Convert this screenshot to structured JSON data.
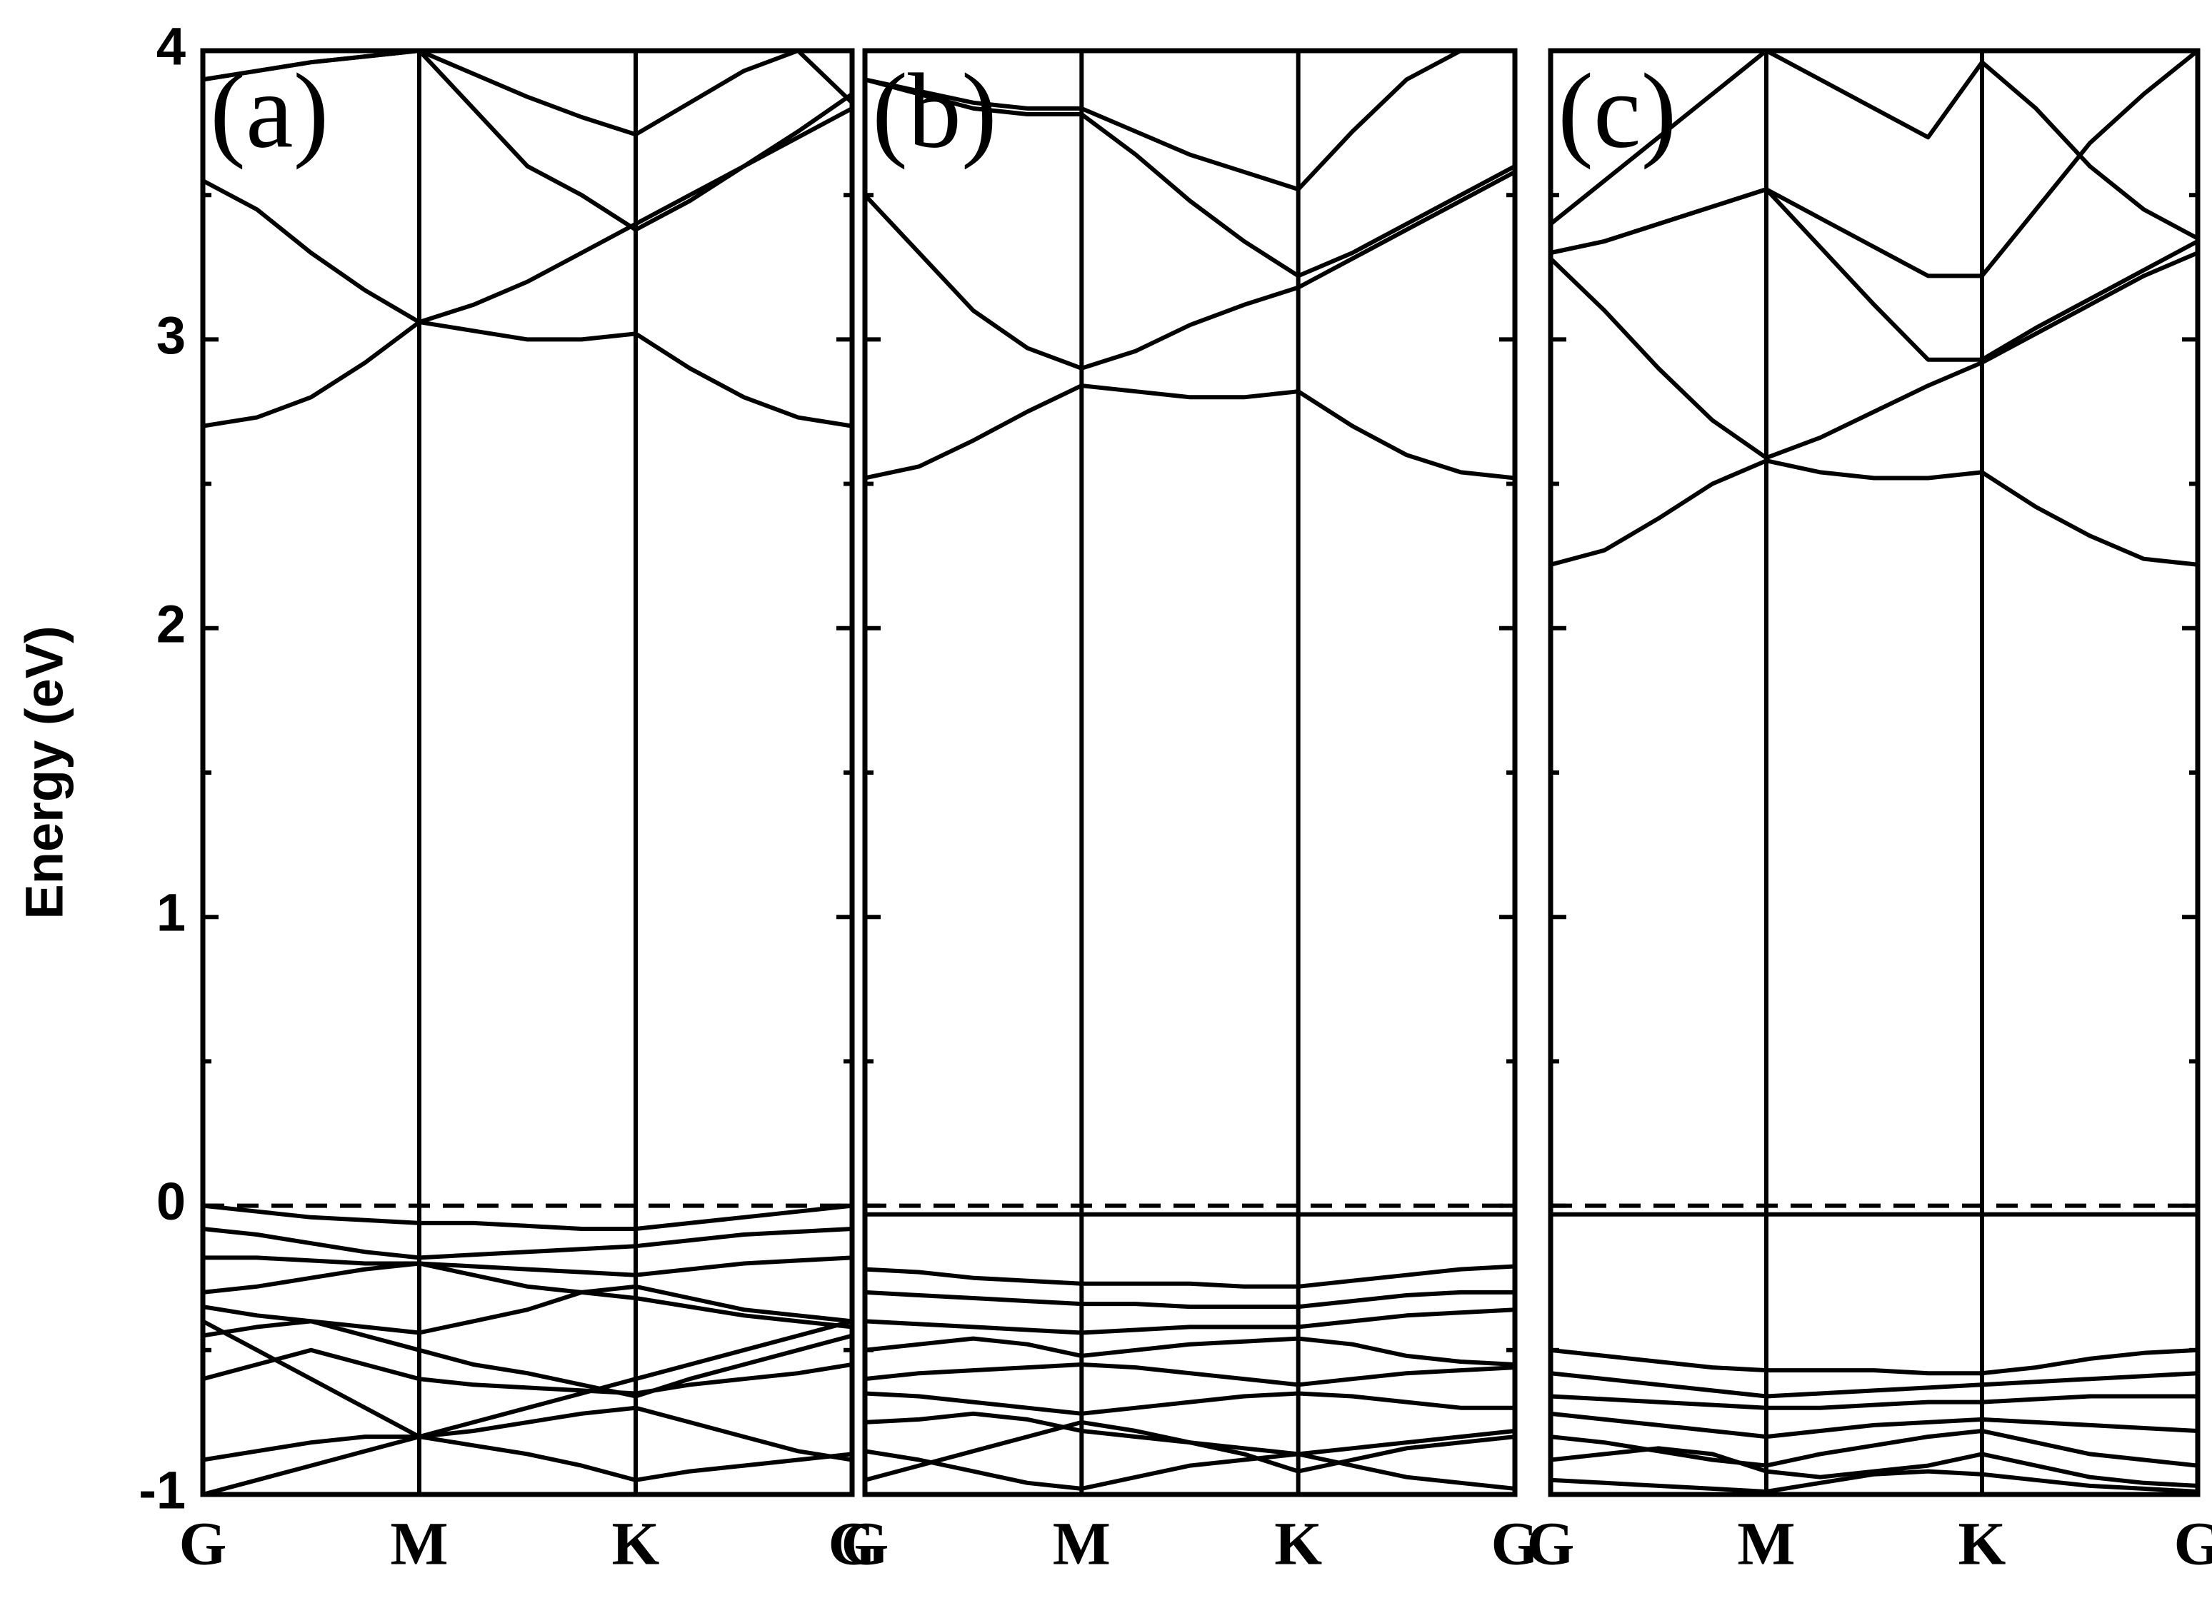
{
  "chart_data": [
    {
      "type": "line",
      "label": "(a)",
      "ylabel": "Energy (eV)",
      "x": [
        0,
        0.25,
        0.5,
        0.75,
        1,
        1.25,
        1.5,
        1.75,
        2,
        2.25,
        2.5,
        2.75,
        3
      ],
      "xlim": [
        0,
        3
      ],
      "xticks": [
        {
          "value": 0,
          "label": "G"
        },
        {
          "value": 1,
          "label": "M"
        },
        {
          "value": 2,
          "label": "K"
        },
        {
          "value": 3,
          "label": "G"
        }
      ],
      "ylim": [
        -1,
        4
      ],
      "yticks": [
        -1,
        0,
        1,
        2,
        3,
        4
      ],
      "minor_yticks": [
        -0.5,
        0.5,
        1.5,
        2.5,
        3.5
      ],
      "hline": 0,
      "hline_style": "dashed",
      "series": [
        {
          "color": "#000000",
          "values": [
            2.7,
            2.73,
            2.8,
            2.92,
            3.06,
            3.03,
            3.0,
            3.0,
            3.02,
            2.9,
            2.8,
            2.73,
            2.7
          ]
        },
        {
          "color": "#000000",
          "values": [
            3.55,
            3.45,
            3.3,
            3.17,
            3.06,
            3.12,
            3.2,
            3.3,
            3.4,
            3.5,
            3.6,
            3.7,
            3.8
          ]
        },
        {
          "color": "#000000",
          "values": [
            3.9,
            3.93,
            3.96,
            3.98,
            4.0,
            3.8,
            3.6,
            3.5,
            3.38,
            3.48,
            3.6,
            3.72,
            3.85
          ]
        },
        {
          "color": "#000000",
          "values": [
            3.9,
            3.93,
            3.96,
            3.98,
            4.0,
            3.92,
            3.84,
            3.77,
            3.71,
            3.82,
            3.93,
            4.0,
            3.82
          ]
        },
        {
          "color": "#000000",
          "values": [
            0,
            -0.02,
            -0.04,
            -0.05,
            -0.06,
            -0.06,
            -0.07,
            -0.08,
            -0.08,
            -0.06,
            -0.04,
            -0.02,
            0
          ]
        },
        {
          "color": "#000000",
          "values": [
            -0.08,
            -0.1,
            -0.13,
            -0.16,
            -0.18,
            -0.17,
            -0.16,
            -0.15,
            -0.14,
            -0.12,
            -0.1,
            -0.09,
            -0.08
          ]
        },
        {
          "color": "#000000",
          "values": [
            -0.18,
            -0.18,
            -0.19,
            -0.2,
            -0.2,
            -0.21,
            -0.22,
            -0.23,
            -0.24,
            -0.22,
            -0.2,
            -0.19,
            -0.18
          ]
        },
        {
          "color": "#000000",
          "values": [
            -0.3,
            -0.28,
            -0.25,
            -0.22,
            -0.2,
            -0.24,
            -0.28,
            -0.3,
            -0.32,
            -0.35,
            -0.38,
            -0.4,
            -0.42
          ]
        },
        {
          "color": "#000000",
          "values": [
            -0.35,
            -0.38,
            -0.4,
            -0.42,
            -0.44,
            -0.4,
            -0.36,
            -0.3,
            -0.28,
            -0.32,
            -0.36,
            -0.38,
            -0.4
          ]
        },
        {
          "color": "#000000",
          "values": [
            -0.45,
            -0.42,
            -0.4,
            -0.45,
            -0.5,
            -0.55,
            -0.58,
            -0.62,
            -0.66,
            -0.6,
            -0.55,
            -0.5,
            -0.45
          ]
        },
        {
          "color": "#000000",
          "values": [
            -0.6,
            -0.55,
            -0.5,
            -0.55,
            -0.6,
            -0.62,
            -0.63,
            -0.64,
            -0.65,
            -0.62,
            -0.6,
            -0.58,
            -0.55
          ]
        },
        {
          "color": "#000000",
          "values": [
            -0.88,
            -0.85,
            -0.82,
            -0.8,
            -0.8,
            -0.78,
            -0.75,
            -0.72,
            -0.7,
            -0.75,
            -0.8,
            -0.85,
            -0.88
          ]
        },
        {
          "color": "#000000",
          "values": [
            -1.0,
            -0.95,
            -0.9,
            -0.85,
            -0.8,
            -0.83,
            -0.86,
            -0.9,
            -0.95,
            -0.92,
            -0.9,
            -0.88,
            -0.86
          ]
        },
        {
          "color": "#000000",
          "values": [
            -0.4,
            -0.5,
            -0.6,
            -0.7,
            -0.8,
            -0.75,
            -0.7,
            -0.65,
            -0.6,
            -0.55,
            -0.5,
            -0.45,
            -0.4
          ]
        }
      ]
    },
    {
      "type": "line",
      "label": "(b)",
      "x": [
        0,
        0.25,
        0.5,
        0.75,
        1,
        1.25,
        1.5,
        1.75,
        2,
        2.25,
        2.5,
        2.75,
        3
      ],
      "xlim": [
        0,
        3
      ],
      "xticks": [
        {
          "value": 0,
          "label": "G"
        },
        {
          "value": 1,
          "label": "M"
        },
        {
          "value": 2,
          "label": "K"
        },
        {
          "value": 3,
          "label": "G"
        }
      ],
      "ylim": [
        -1,
        4
      ],
      "hline": 0,
      "hline_style": "dashed",
      "series": [
        {
          "color": "#000000",
          "values": [
            2.52,
            2.56,
            2.65,
            2.75,
            2.84,
            2.82,
            2.8,
            2.8,
            2.82,
            2.7,
            2.6,
            2.54,
            2.52
          ]
        },
        {
          "color": "#000000",
          "values": [
            3.5,
            3.3,
            3.1,
            2.97,
            2.9,
            2.96,
            3.05,
            3.12,
            3.18,
            3.28,
            3.38,
            3.48,
            3.58
          ]
        },
        {
          "color": "#000000",
          "values": [
            3.9,
            3.85,
            3.8,
            3.78,
            3.78,
            3.64,
            3.48,
            3.34,
            3.22,
            3.3,
            3.4,
            3.5,
            3.6
          ]
        },
        {
          "color": "#000000",
          "values": [
            3.9,
            3.86,
            3.82,
            3.8,
            3.8,
            3.72,
            3.64,
            3.58,
            3.52,
            3.72,
            3.9,
            4.0,
            4.0
          ]
        },
        {
          "color": "#000000",
          "values": [
            -0.03,
            -0.03,
            -0.03,
            -0.03,
            -0.03,
            -0.03,
            -0.03,
            -0.03,
            -0.03,
            -0.03,
            -0.03,
            -0.03,
            -0.03
          ]
        },
        {
          "color": "#000000",
          "values": [
            -0.22,
            -0.23,
            -0.25,
            -0.26,
            -0.27,
            -0.27,
            -0.27,
            -0.28,
            -0.28,
            -0.26,
            -0.24,
            -0.22,
            -0.21
          ]
        },
        {
          "color": "#000000",
          "values": [
            -0.3,
            -0.31,
            -0.32,
            -0.33,
            -0.34,
            -0.34,
            -0.35,
            -0.35,
            -0.35,
            -0.33,
            -0.31,
            -0.3,
            -0.3
          ]
        },
        {
          "color": "#000000",
          "values": [
            -0.4,
            -0.41,
            -0.42,
            -0.43,
            -0.44,
            -0.43,
            -0.42,
            -0.42,
            -0.42,
            -0.4,
            -0.38,
            -0.37,
            -0.36
          ]
        },
        {
          "color": "#000000",
          "values": [
            -0.5,
            -0.48,
            -0.46,
            -0.48,
            -0.52,
            -0.5,
            -0.48,
            -0.47,
            -0.46,
            -0.48,
            -0.52,
            -0.54,
            -0.55
          ]
        },
        {
          "color": "#000000",
          "values": [
            -0.6,
            -0.58,
            -0.57,
            -0.56,
            -0.55,
            -0.56,
            -0.58,
            -0.6,
            -0.62,
            -0.6,
            -0.58,
            -0.57,
            -0.56
          ]
        },
        {
          "color": "#000000",
          "values": [
            -0.65,
            -0.66,
            -0.68,
            -0.7,
            -0.72,
            -0.7,
            -0.68,
            -0.66,
            -0.65,
            -0.66,
            -0.68,
            -0.7,
            -0.7
          ]
        },
        {
          "color": "#000000",
          "values": [
            -0.75,
            -0.74,
            -0.72,
            -0.74,
            -0.78,
            -0.8,
            -0.82,
            -0.84,
            -0.86,
            -0.84,
            -0.82,
            -0.8,
            -0.78
          ]
        },
        {
          "color": "#000000",
          "values": [
            -0.85,
            -0.88,
            -0.92,
            -0.96,
            -0.98,
            -0.94,
            -0.9,
            -0.88,
            -0.86,
            -0.9,
            -0.94,
            -0.96,
            -0.98
          ]
        },
        {
          "color": "#000000",
          "values": [
            -0.95,
            -0.9,
            -0.85,
            -0.8,
            -0.75,
            -0.78,
            -0.82,
            -0.86,
            -0.92,
            -0.88,
            -0.84,
            -0.82,
            -0.8
          ]
        }
      ]
    },
    {
      "type": "line",
      "label": "(c)",
      "x": [
        0,
        0.25,
        0.5,
        0.75,
        1,
        1.25,
        1.5,
        1.75,
        2,
        2.25,
        2.5,
        2.75,
        3
      ],
      "xlim": [
        0,
        3
      ],
      "xticks": [
        {
          "value": 0,
          "label": "G"
        },
        {
          "value": 1,
          "label": "M"
        },
        {
          "value": 2,
          "label": "K"
        },
        {
          "value": 3,
          "label": "G"
        }
      ],
      "ylim": [
        -1,
        4
      ],
      "hline": 0,
      "hline_style": "dashed",
      "series": [
        {
          "color": "#000000",
          "values": [
            2.22,
            2.27,
            2.38,
            2.5,
            2.58,
            2.54,
            2.52,
            2.52,
            2.54,
            2.42,
            2.32,
            2.24,
            2.22
          ]
        },
        {
          "color": "#000000",
          "values": [
            3.28,
            3.1,
            2.9,
            2.72,
            2.59,
            2.66,
            2.75,
            2.84,
            2.92,
            3.02,
            3.12,
            3.22,
            3.3
          ]
        },
        {
          "color": "#000000",
          "values": [
            3.3,
            3.34,
            3.4,
            3.46,
            3.52,
            3.32,
            3.12,
            2.93,
            2.93,
            3.04,
            3.14,
            3.24,
            3.34
          ]
        },
        {
          "color": "#000000",
          "values": [
            3.3,
            3.34,
            3.4,
            3.46,
            3.52,
            3.42,
            3.32,
            3.22,
            3.22,
            3.45,
            3.68,
            3.85,
            4.0
          ]
        },
        {
          "color": "#000000",
          "values": [
            3.4,
            3.55,
            3.7,
            3.85,
            4.0,
            3.9,
            3.8,
            3.7,
            3.96,
            3.8,
            3.6,
            3.45,
            3.35
          ]
        },
        {
          "color": "#000000",
          "values": [
            -0.03,
            -0.03,
            -0.03,
            -0.03,
            -0.03,
            -0.03,
            -0.03,
            -0.03,
            -0.03,
            -0.03,
            -0.03,
            -0.03,
            -0.03
          ]
        },
        {
          "color": "#000000",
          "values": [
            -0.5,
            -0.52,
            -0.54,
            -0.56,
            -0.57,
            -0.57,
            -0.57,
            -0.58,
            -0.58,
            -0.56,
            -0.53,
            -0.51,
            -0.5
          ]
        },
        {
          "color": "#000000",
          "values": [
            -0.58,
            -0.6,
            -0.62,
            -0.64,
            -0.66,
            -0.65,
            -0.64,
            -0.63,
            -0.62,
            -0.61,
            -0.6,
            -0.59,
            -0.58
          ]
        },
        {
          "color": "#000000",
          "values": [
            -0.66,
            -0.67,
            -0.68,
            -0.69,
            -0.7,
            -0.7,
            -0.69,
            -0.68,
            -0.68,
            -0.67,
            -0.66,
            -0.66,
            -0.66
          ]
        },
        {
          "color": "#000000",
          "values": [
            -0.72,
            -0.74,
            -0.76,
            -0.78,
            -0.8,
            -0.78,
            -0.76,
            -0.75,
            -0.74,
            -0.75,
            -0.76,
            -0.77,
            -0.78
          ]
        },
        {
          "color": "#000000",
          "values": [
            -0.8,
            -0.82,
            -0.85,
            -0.88,
            -0.9,
            -0.86,
            -0.83,
            -0.8,
            -0.78,
            -0.82,
            -0.86,
            -0.88,
            -0.9
          ]
        },
        {
          "color": "#000000",
          "values": [
            -0.88,
            -0.86,
            -0.84,
            -0.86,
            -0.92,
            -0.94,
            -0.92,
            -0.9,
            -0.86,
            -0.9,
            -0.94,
            -0.96,
            -0.97
          ]
        },
        {
          "color": "#000000",
          "values": [
            -0.95,
            -0.96,
            -0.97,
            -0.98,
            -0.99,
            -0.96,
            -0.93,
            -0.92,
            -0.93,
            -0.95,
            -0.97,
            -0.98,
            -0.99
          ]
        }
      ]
    }
  ]
}
